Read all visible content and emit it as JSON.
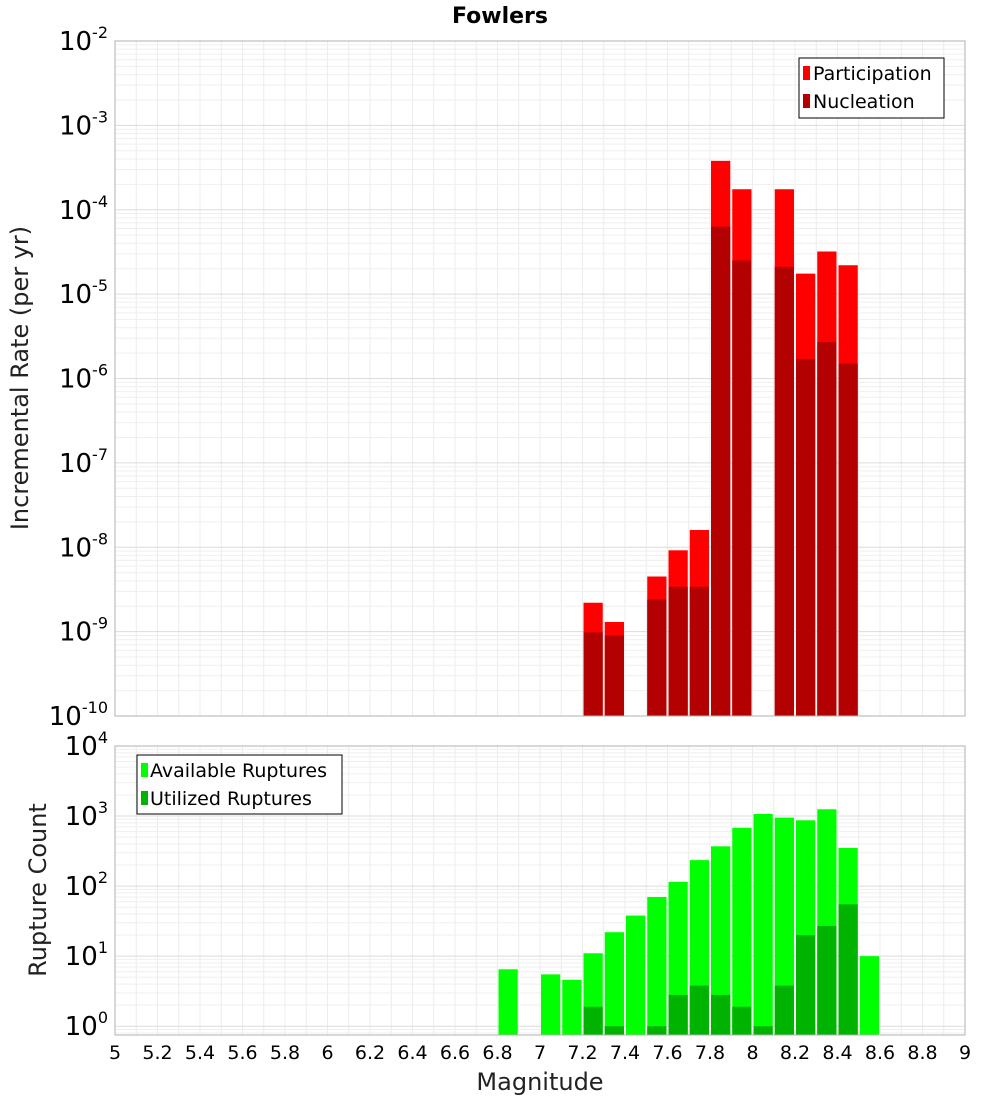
{
  "chart_data": [
    {
      "type": "bar",
      "title": "Fowlers",
      "xlabel": "",
      "ylabel": "Incremental Rate (per yr)",
      "yscale": "log",
      "ylim": [
        1e-10,
        0.01
      ],
      "xlim": [
        5,
        9
      ],
      "grid": true,
      "legend_position": "top-right",
      "ytick_labels": [
        {
          "value": 1e-10,
          "base": "10",
          "exp": "-10"
        },
        {
          "value": 1e-09,
          "base": "10",
          "exp": "-9"
        },
        {
          "value": 1e-08,
          "base": "10",
          "exp": "-8"
        },
        {
          "value": 1e-07,
          "base": "10",
          "exp": "-7"
        },
        {
          "value": 1e-06,
          "base": "10",
          "exp": "-6"
        },
        {
          "value": 1e-05,
          "base": "10",
          "exp": "-5"
        },
        {
          "value": 0.0001,
          "base": "10",
          "exp": "-4"
        },
        {
          "value": 0.001,
          "base": "10",
          "exp": "-3"
        },
        {
          "value": 0.01,
          "base": "10",
          "exp": "-2"
        }
      ],
      "x": [
        7.25,
        7.35,
        7.55,
        7.65,
        7.75,
        7.85,
        7.95,
        8.15,
        8.25,
        8.35,
        8.45
      ],
      "series": [
        {
          "name": "Participation",
          "color": "#ff0000",
          "values": [
            2.2e-09,
            1.3e-09,
            4.5e-09,
            9.2e-09,
            1.6e-08,
            0.00038,
            0.000175,
            0.000175,
            1.75e-05,
            3.2e-05,
            2.2e-05
          ]
        },
        {
          "name": "Nucleation",
          "color": "#b30000",
          "values": [
            9.8e-10,
            9e-10,
            2.4e-09,
            3.4e-09,
            3.4e-09,
            6.3e-05,
            2.5e-05,
            2.1e-05,
            1.7e-06,
            2.7e-06,
            1.5e-06
          ]
        }
      ]
    },
    {
      "type": "bar",
      "title": "",
      "xlabel": "Magnitude",
      "ylabel": "Rupture Count",
      "yscale": "log",
      "ylim": [
        0.75,
        10000
      ],
      "xlim": [
        5,
        9
      ],
      "grid": true,
      "legend_position": "top-left",
      "ytick_labels": [
        {
          "value": 1,
          "base": "10",
          "exp": "0"
        },
        {
          "value": 10,
          "base": "10",
          "exp": "1"
        },
        {
          "value": 100,
          "base": "10",
          "exp": "2"
        },
        {
          "value": 1000,
          "base": "10",
          "exp": "3"
        },
        {
          "value": 10000,
          "base": "10",
          "exp": "4"
        }
      ],
      "xtick_labels": [
        "5",
        "5.2",
        "5.4",
        "5.6",
        "5.8",
        "6",
        "6.2",
        "6.4",
        "6.6",
        "6.8",
        "7",
        "7.2",
        "7.4",
        "7.6",
        "7.8",
        "8",
        "8.2",
        "8.4",
        "8.6",
        "8.8",
        "9"
      ],
      "x": [
        6.85,
        7.05,
        7.15,
        7.25,
        7.35,
        7.45,
        7.55,
        7.65,
        7.75,
        7.85,
        7.95,
        8.05,
        8.15,
        8.25,
        8.35,
        8.45,
        8.55
      ],
      "series": [
        {
          "name": "Available Ruptures",
          "color": "#00ff00",
          "values": [
            6.5,
            5.5,
            4.6,
            11,
            22,
            38,
            70,
            115,
            235,
            370,
            680,
            1070,
            950,
            870,
            1250,
            350,
            10
          ]
        },
        {
          "name": "Utilized Ruptures",
          "color": "#00b300",
          "values": [
            null,
            null,
            null,
            1.9,
            1,
            null,
            1,
            2.8,
            3.8,
            2.8,
            1.9,
            1,
            3.8,
            20,
            27,
            55,
            null
          ]
        }
      ]
    }
  ]
}
